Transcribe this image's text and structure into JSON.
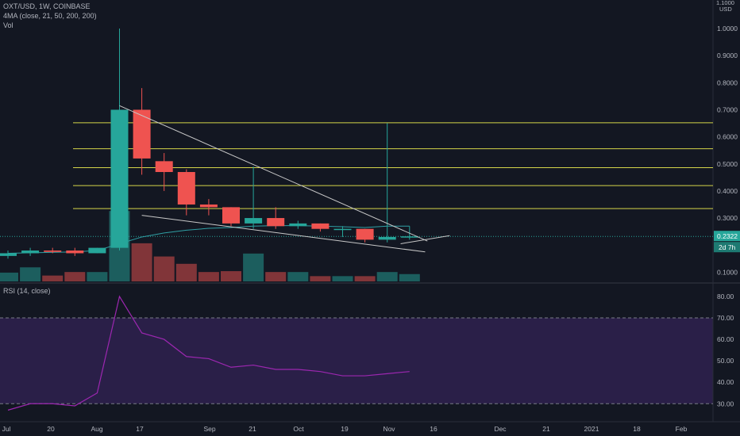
{
  "header": {
    "symbol_line": "OXT/USD, 1W, COINBASE",
    "ma_line": "4MA (close, 21, 50, 200, 200)",
    "vol_label": "Vol",
    "rsi_label": "RSI (14, close)"
  },
  "price_scale": {
    "currency": "USD",
    "top_label": "1.1000"
  },
  "chart_data": {
    "type": "candlestick",
    "title": "OXT/USD, 1W, COINBASE",
    "x_ticks": [
      "Jul",
      "20",
      "Aug",
      "17",
      "Sep",
      "21",
      "Oct",
      "19",
      "Nov",
      "16",
      "Dec",
      "21",
      "2021",
      "18",
      "Feb"
    ],
    "y_ticks": [
      "1.0000",
      "0.9000",
      "0.8000",
      "0.7000",
      "0.6000",
      "0.5000",
      "0.4000",
      "0.3000",
      "0.1000"
    ],
    "ylim": [
      0,
      1.1
    ],
    "candles": [
      {
        "o": 0.16,
        "h": 0.18,
        "l": 0.15,
        "c": 0.17
      },
      {
        "o": 0.17,
        "h": 0.19,
        "l": 0.16,
        "c": 0.18
      },
      {
        "o": 0.18,
        "h": 0.19,
        "l": 0.17,
        "c": 0.175
      },
      {
        "o": 0.18,
        "h": 0.19,
        "l": 0.16,
        "c": 0.17
      },
      {
        "o": 0.17,
        "h": 0.19,
        "l": 0.17,
        "c": 0.19
      },
      {
        "o": 0.19,
        "h": 1.0,
        "l": 0.18,
        "c": 0.7
      },
      {
        "o": 0.7,
        "h": 0.78,
        "l": 0.46,
        "c": 0.52
      },
      {
        "o": 0.51,
        "h": 0.54,
        "l": 0.4,
        "c": 0.47
      },
      {
        "o": 0.47,
        "h": 0.48,
        "l": 0.31,
        "c": 0.35
      },
      {
        "o": 0.35,
        "h": 0.37,
        "l": 0.31,
        "c": 0.34
      },
      {
        "o": 0.34,
        "h": 0.34,
        "l": 0.27,
        "c": 0.28
      },
      {
        "o": 0.28,
        "h": 0.49,
        "l": 0.26,
        "c": 0.3
      },
      {
        "o": 0.3,
        "h": 0.34,
        "l": 0.26,
        "c": 0.27
      },
      {
        "o": 0.27,
        "h": 0.29,
        "l": 0.26,
        "c": 0.28
      },
      {
        "o": 0.28,
        "h": 0.28,
        "l": 0.25,
        "c": 0.26
      },
      {
        "o": 0.26,
        "h": 0.27,
        "l": 0.23,
        "c": 0.26
      },
      {
        "o": 0.26,
        "h": 0.26,
        "l": 0.21,
        "c": 0.22
      },
      {
        "o": 0.22,
        "h": 0.65,
        "l": 0.21,
        "c": 0.23
      },
      {
        "o": 0.23,
        "h": 0.27,
        "l": 0.22,
        "c": 0.2322
      }
    ],
    "volume": [
      {
        "v": 0.3,
        "up": true
      },
      {
        "v": 0.48,
        "up": true
      },
      {
        "v": 0.2,
        "up": false
      },
      {
        "v": 0.32,
        "up": false
      },
      {
        "v": 0.32,
        "up": true
      },
      {
        "v": 2.4,
        "up": true
      },
      {
        "v": 1.3,
        "up": false
      },
      {
        "v": 0.85,
        "up": false
      },
      {
        "v": 0.6,
        "up": false
      },
      {
        "v": 0.32,
        "up": false
      },
      {
        "v": 0.35,
        "up": false
      },
      {
        "v": 0.95,
        "up": true
      },
      {
        "v": 0.32,
        "up": false
      },
      {
        "v": 0.32,
        "up": true
      },
      {
        "v": 0.18,
        "up": false
      },
      {
        "v": 0.18,
        "up": true
      },
      {
        "v": 0.18,
        "up": false
      },
      {
        "v": 0.32,
        "up": true
      },
      {
        "v": 0.25,
        "up": true
      }
    ],
    "moving_average": [
      [
        0,
        0.17
      ],
      [
        3,
        0.175
      ],
      [
        4,
        0.18
      ],
      [
        5,
        0.205
      ],
      [
        6,
        0.23
      ],
      [
        7,
        0.245
      ],
      [
        8,
        0.255
      ],
      [
        9,
        0.262
      ],
      [
        10,
        0.265
      ],
      [
        11,
        0.27
      ],
      [
        12,
        0.272
      ],
      [
        13,
        0.272
      ],
      [
        14,
        0.27
      ],
      [
        15,
        0.268
      ],
      [
        16,
        0.265
      ],
      [
        17,
        0.27
      ],
      [
        18,
        0.27
      ]
    ],
    "horizontal_levels": [
      0.652,
      0.556,
      0.486,
      0.42,
      0.335
    ],
    "trendlines": [
      {
        "from": [
          5,
          0.715
        ],
        "to": [
          18.8,
          0.215
        ]
      },
      {
        "from": [
          6,
          0.31
        ],
        "to": [
          18.7,
          0.175
        ]
      },
      {
        "from": [
          17.6,
          0.205
        ],
        "to": [
          19.8,
          0.235
        ]
      }
    ],
    "last_price_label": "0.2322",
    "countdown_label": "2d 7h",
    "rsi": {
      "y_ticks": [
        "80.00",
        "70.00",
        "60.00",
        "50.00",
        "40.00",
        "30.00"
      ],
      "ylim": [
        25,
        85
      ],
      "upper": 70,
      "lower": 30,
      "values": [
        27,
        30,
        30,
        29,
        35,
        80,
        63,
        60,
        52,
        51,
        47,
        48,
        46,
        46,
        45,
        43,
        43,
        44,
        45
      ]
    }
  },
  "colors": {
    "background": "#131722",
    "up": "#26a69a",
    "down": "#ef5350",
    "ma": "#2f9fa4",
    "level": "#d4d44a",
    "trendline": "#c8c8c8",
    "rsi_line": "#9c27b0",
    "rsi_band": "#2a1f48"
  }
}
